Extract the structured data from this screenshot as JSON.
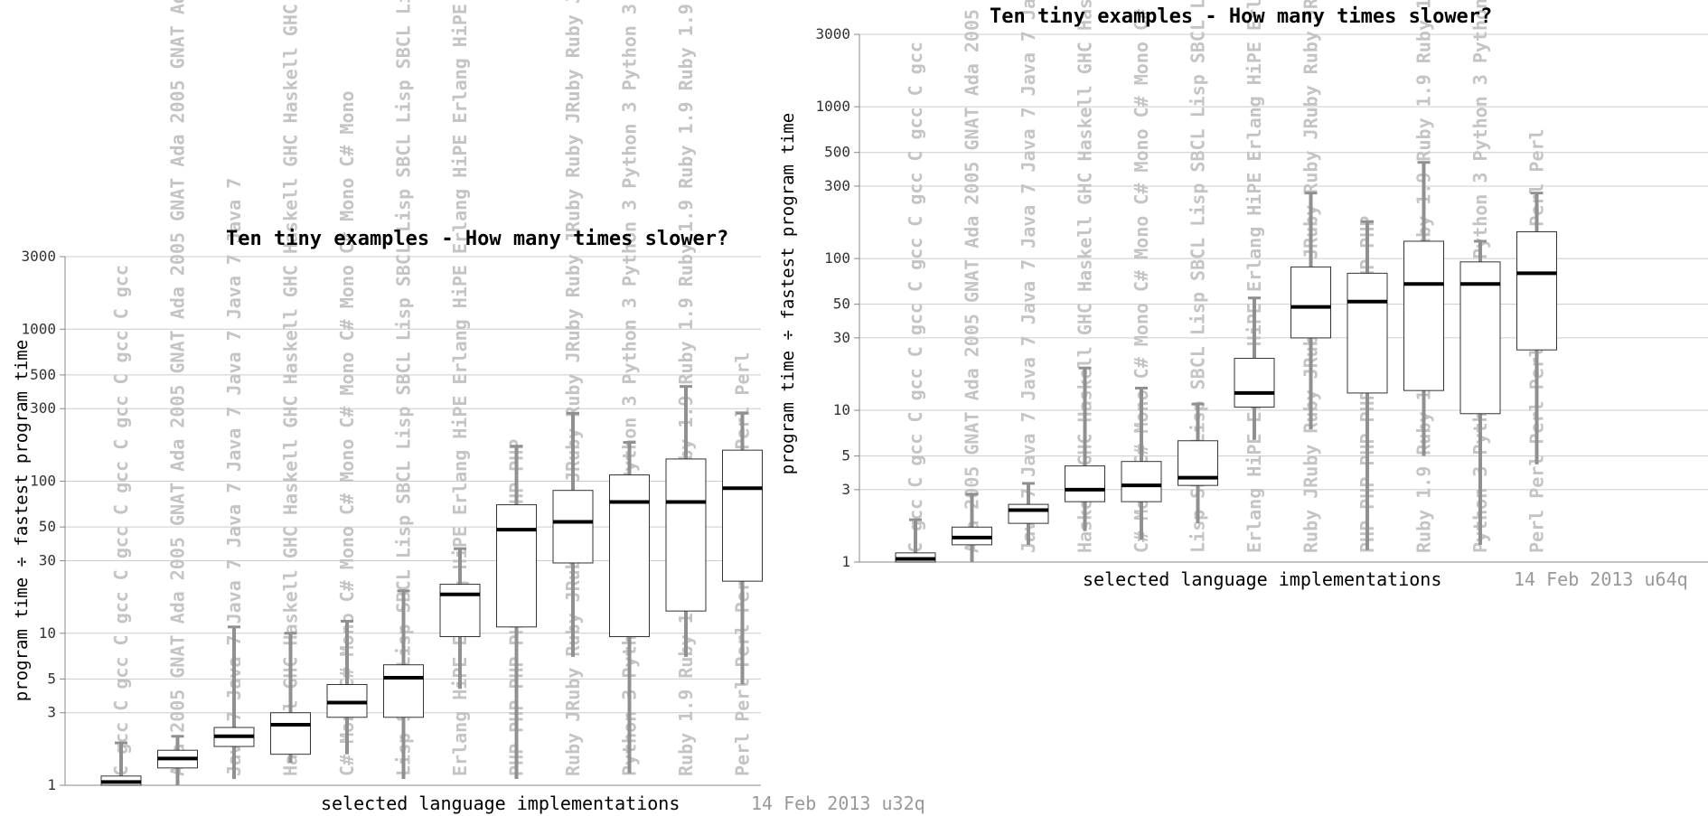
{
  "chart_data": [
    {
      "type": "boxplot",
      "title": "Ten tiny examples - How many times slower?",
      "xlabel": "selected language implementations",
      "ylabel": "program time ÷ fastest program time",
      "footer": "14 Feb 2013 u32q",
      "scale": "log",
      "ylim": [
        1,
        3000
      ],
      "yticks": [
        "1",
        "3",
        "5",
        "10",
        "30",
        "50",
        "100",
        "300",
        "500",
        "1000",
        "3000"
      ],
      "grid": true,
      "columns": [
        {
          "label": "C gcc",
          "whisker_low": 1.0,
          "q1": 1.0,
          "median": 1.05,
          "q3": 1.15,
          "whisker_high": 1.9
        },
        {
          "label": "Ada 2005 GNAT",
          "whisker_low": 1.0,
          "q1": 1.3,
          "median": 1.5,
          "q3": 1.7,
          "whisker_high": 2.1
        },
        {
          "label": "Java 7",
          "whisker_low": 1.1,
          "q1": 1.8,
          "median": 2.1,
          "q3": 2.4,
          "whisker_high": 11
        },
        {
          "label": "Haskell GHC",
          "whisker_low": 1.4,
          "q1": 1.6,
          "median": 2.5,
          "q3": 3.0,
          "whisker_high": 10
        },
        {
          "label": "C# Mono",
          "whisker_low": 1.6,
          "q1": 2.8,
          "median": 3.5,
          "q3": 4.6,
          "whisker_high": 12
        },
        {
          "label": "Lisp SBCL",
          "whisker_low": 1.1,
          "q1": 2.8,
          "median": 5.1,
          "q3": 6.2,
          "whisker_high": 19
        },
        {
          "label": "Erlang HiPE",
          "whisker_low": 4.3,
          "q1": 9.5,
          "median": 18,
          "q3": 21,
          "whisker_high": 36
        },
        {
          "label": "PHP",
          "whisker_low": 1.1,
          "q1": 11,
          "median": 48,
          "q3": 70,
          "whisker_high": 170
        },
        {
          "label": "Ruby JRuby",
          "whisker_low": 7,
          "q1": 29,
          "median": 54,
          "q3": 87,
          "whisker_high": 280
        },
        {
          "label": "Python 3",
          "whisker_low": 1.2,
          "q1": 9.5,
          "median": 73,
          "q3": 110,
          "whisker_high": 180
        },
        {
          "label": "Ruby 1.9",
          "whisker_low": 7,
          "q1": 14,
          "median": 73,
          "q3": 140,
          "whisker_high": 420
        },
        {
          "label": "Perl",
          "whisker_low": 4.6,
          "q1": 22,
          "median": 90,
          "q3": 160,
          "whisker_high": 280
        }
      ]
    },
    {
      "type": "boxplot",
      "title": "Ten tiny examples - How many times slower?",
      "xlabel": "selected language implementations",
      "ylabel": "program time ÷ fastest program time",
      "footer": "14 Feb 2013 u64q",
      "scale": "log",
      "ylim": [
        1,
        3000
      ],
      "yticks": [
        "1",
        "3",
        "5",
        "10",
        "30",
        "50",
        "100",
        "300",
        "500",
        "1000",
        "3000"
      ],
      "grid": true,
      "columns": [
        {
          "label": "C gcc",
          "whisker_low": 1.0,
          "q1": 1.0,
          "median": 1.05,
          "q3": 1.15,
          "whisker_high": 1.9
        },
        {
          "label": "Ada 2005 GNAT",
          "whisker_low": 1.0,
          "q1": 1.3,
          "median": 1.45,
          "q3": 1.7,
          "whisker_high": 2.8
        },
        {
          "label": "Java 7",
          "whisker_low": 1.3,
          "q1": 1.8,
          "median": 2.2,
          "q3": 2.4,
          "whisker_high": 3.3
        },
        {
          "label": "Haskell GHC",
          "whisker_low": 1.6,
          "q1": 2.5,
          "median": 3.0,
          "q3": 4.3,
          "whisker_high": 19
        },
        {
          "label": "C# Mono",
          "whisker_low": 1.4,
          "q1": 2.5,
          "median": 3.2,
          "q3": 4.6,
          "whisker_high": 14
        },
        {
          "label": "Lisp SBCL",
          "whisker_low": 1.8,
          "q1": 3.2,
          "median": 3.6,
          "q3": 6.3,
          "whisker_high": 11
        },
        {
          "label": "Erlang HiPE",
          "whisker_low": 6.4,
          "q1": 10.5,
          "median": 13,
          "q3": 22,
          "whisker_high": 55
        },
        {
          "label": "Ruby JRuby",
          "whisker_low": 7.5,
          "q1": 30,
          "median": 48,
          "q3": 88,
          "whisker_high": 270
        },
        {
          "label": "PHP",
          "whisker_low": 1.2,
          "q1": 13,
          "median": 52,
          "q3": 80,
          "whisker_high": 175
        },
        {
          "label": "Ruby 1.9",
          "whisker_low": 5,
          "q1": 13.5,
          "median": 68,
          "q3": 130,
          "whisker_high": 430
        },
        {
          "label": "Python 3",
          "whisker_low": 1.3,
          "q1": 9.5,
          "median": 68,
          "q3": 95,
          "whisker_high": 130
        },
        {
          "label": "Perl",
          "whisker_low": 4.4,
          "q1": 25,
          "median": 80,
          "q3": 150,
          "whisker_high": 270
        }
      ]
    }
  ]
}
